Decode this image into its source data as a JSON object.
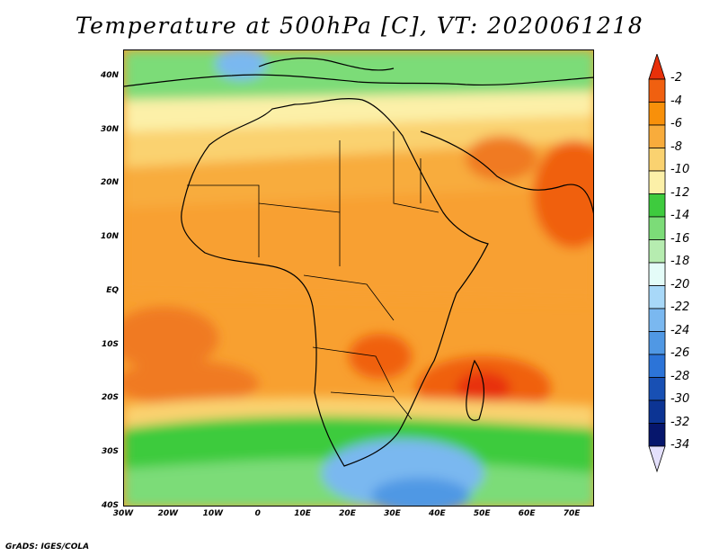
{
  "title": "Temperature at 500hPa [C], VT: 2020061218",
  "footer": "GrADS: IGES/COLA",
  "map": {
    "lat_ticks": [
      "40N",
      "30N",
      "20N",
      "10N",
      "EQ",
      "10S",
      "20S",
      "30S",
      "40S"
    ],
    "lon_ticks": [
      "30W",
      "20W",
      "10W",
      "0",
      "10E",
      "20E",
      "30E",
      "40E",
      "50E",
      "60E",
      "70E"
    ]
  },
  "colorbar": {
    "labels": [
      "-2",
      "-4",
      "-6",
      "-8",
      "-10",
      "-12",
      "-14",
      "-16",
      "-18",
      "-20",
      "-22",
      "-24",
      "-26",
      "-28",
      "-30",
      "-32",
      "-34"
    ],
    "colors": [
      "#e8300a",
      "#f06010",
      "#f8900a",
      "#f8ac3c",
      "#fad270",
      "#fcf0a8",
      "#3ecb3e",
      "#7cdc78",
      "#b6ecb0",
      "#e4fcf8",
      "#a8d8f8",
      "#7ab8f0",
      "#5098e4",
      "#2c74d8",
      "#1850b4",
      "#0c3494",
      "#06166c",
      "#e4e0fc"
    ],
    "unit": "C"
  }
}
